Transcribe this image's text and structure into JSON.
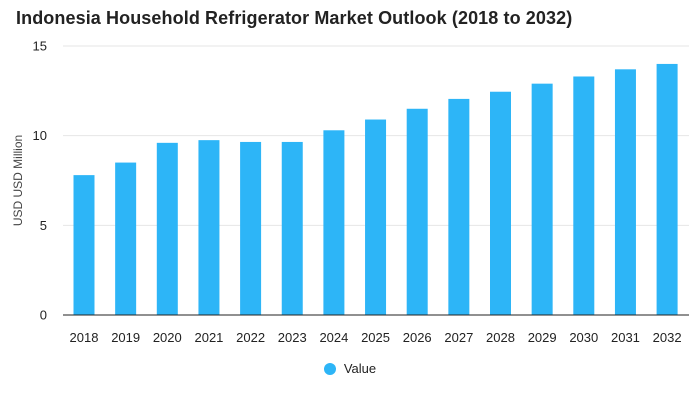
{
  "chart_data": {
    "type": "bar",
    "title": "Indonesia Household Refrigerator Market Outlook (2018 to 2032)",
    "xlabel": "",
    "ylabel": "USD USD Million",
    "categories": [
      "2018",
      "2019",
      "2020",
      "2021",
      "2022",
      "2023",
      "2024",
      "2025",
      "2026",
      "2027",
      "2028",
      "2029",
      "2030",
      "2031",
      "2032"
    ],
    "series": [
      {
        "name": "Value",
        "values": [
          7.8,
          8.5,
          9.6,
          9.75,
          9.65,
          9.65,
          10.3,
          10.9,
          11.5,
          12.05,
          12.45,
          12.9,
          13.3,
          13.7,
          14.0
        ]
      }
    ],
    "ylim": [
      0,
      15
    ],
    "yticks": [
      0,
      5,
      10,
      15
    ],
    "grid": true,
    "legend_position": "bottom",
    "colors": {
      "bar": "#2db5f7",
      "grid": "#e6e6e6",
      "axis": "#222222"
    }
  }
}
